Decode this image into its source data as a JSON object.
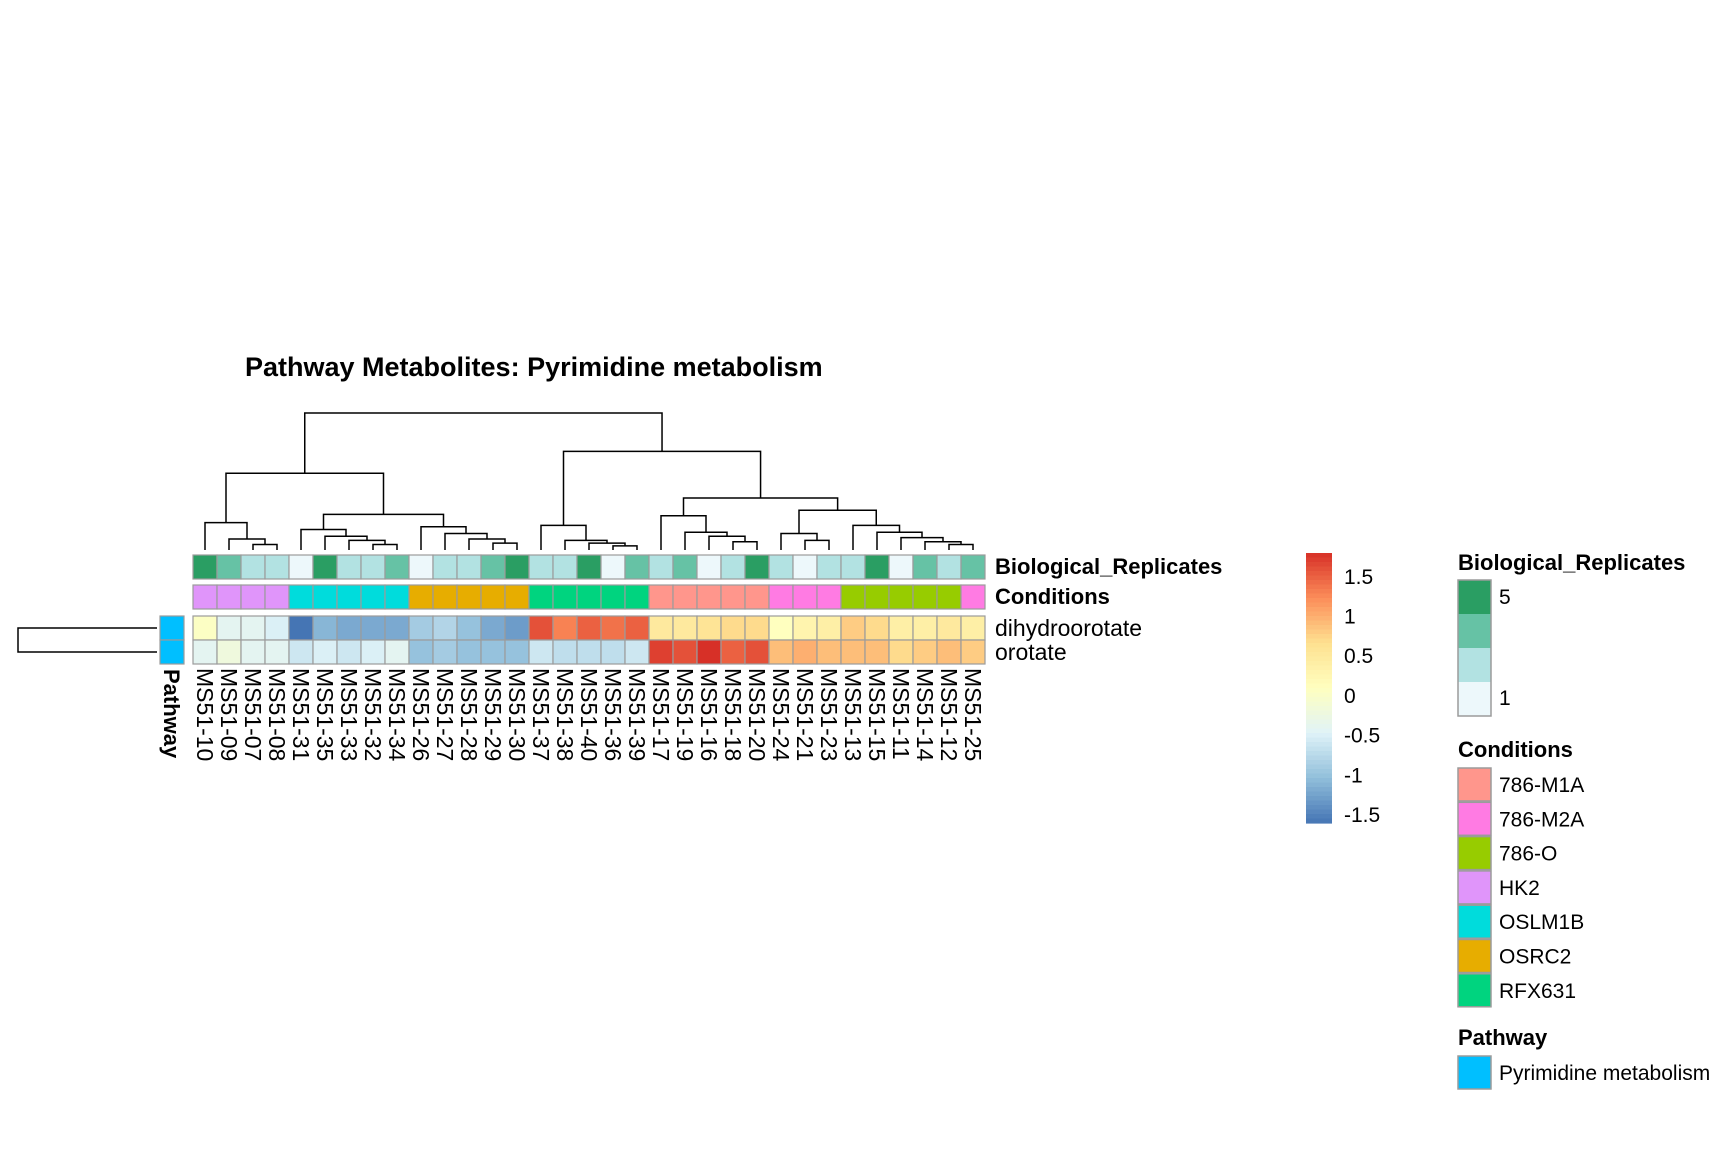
{
  "chart_data": {
    "type": "heatmap",
    "title": "Pathway  Metabolites:  Pyrimidine metabolism",
    "columns": [
      "MS51-10",
      "MS51-09",
      "MS51-07",
      "MS51-08",
      "MS51-31",
      "MS51-35",
      "MS51-33",
      "MS51-32",
      "MS51-34",
      "MS51-26",
      "MS51-27",
      "MS51-28",
      "MS51-29",
      "MS51-30",
      "MS51-37",
      "MS51-38",
      "MS51-40",
      "MS51-36",
      "MS51-39",
      "MS51-17",
      "MS51-19",
      "MS51-16",
      "MS51-18",
      "MS51-20",
      "MS51-24",
      "MS51-21",
      "MS51-23",
      "MS51-13",
      "MS51-15",
      "MS51-11",
      "MS51-14",
      "MS51-12",
      "MS51-25"
    ],
    "rows": [
      "dihydroorotate",
      "orotate"
    ],
    "values": [
      [
        0.05,
        -0.4,
        -0.4,
        -0.5,
        -1.6,
        -1.1,
        -1.2,
        -1.2,
        -1.2,
        -0.9,
        -0.8,
        -1.0,
        -1.2,
        -1.3,
        1.6,
        1.3,
        1.5,
        1.4,
        1.5,
        0.5,
        0.5,
        0.6,
        0.7,
        0.7,
        0.1,
        0.3,
        0.4,
        0.8,
        0.7,
        0.4,
        0.4,
        0.5,
        0.4
      ],
      [
        -0.4,
        -0.2,
        -0.4,
        -0.4,
        -0.6,
        -0.5,
        -0.6,
        -0.5,
        -0.4,
        -1.0,
        -0.9,
        -1.0,
        -1.0,
        -1.0,
        -0.6,
        -0.7,
        -0.7,
        -0.7,
        -0.6,
        1.7,
        1.6,
        1.8,
        1.5,
        1.6,
        0.9,
        1.0,
        0.9,
        0.9,
        0.9,
        0.7,
        0.8,
        0.9,
        0.8
      ]
    ],
    "annotations": {
      "Biological_Replicates": {
        "label": "Biological_Replicates",
        "values": [
          5,
          4,
          2,
          3,
          1,
          5,
          3,
          2,
          4,
          1,
          2,
          3,
          4,
          5,
          2,
          3,
          5,
          1,
          4,
          2,
          4,
          1,
          3,
          5,
          3,
          1,
          2,
          3,
          5,
          1,
          4,
          2,
          4
        ]
      },
      "Conditions": {
        "label": "Conditions",
        "values": [
          "HK2",
          "HK2",
          "HK2",
          "HK2",
          "OSLM1B",
          "OSLM1B",
          "OSLM1B",
          "OSLM1B",
          "OSLM1B",
          "OSRC2",
          "OSRC2",
          "OSRC2",
          "OSRC2",
          "OSRC2",
          "RFX631",
          "RFX631",
          "RFX631",
          "RFX631",
          "RFX631",
          "786-M1A",
          "786-M1A",
          "786-M1A",
          "786-M1A",
          "786-M1A",
          "786-M2A",
          "786-M2A",
          "786-M2A",
          "786-O",
          "786-O",
          "786-O",
          "786-O",
          "786-O",
          "786-M2A"
        ]
      },
      "Pathway": {
        "label": "Pathway",
        "values": [
          "Pyrimidine metabolism",
          "Pyrimidine metabolism"
        ]
      }
    },
    "scale": {
      "min": -1.6,
      "max": 1.8,
      "ticks": [
        -1.5,
        -1,
        -0.5,
        0,
        0.5,
        1,
        1.5
      ],
      "tick_labels": [
        "-1.5",
        "-1",
        "-0.5",
        "0",
        "0.5",
        "1",
        "1.5"
      ],
      "colors": [
        "#4575b4",
        "#91bfdb",
        "#e0f3f8",
        "#ffffbf",
        "#fee090",
        "#fc8d59",
        "#d73027"
      ]
    },
    "legends": {
      "bio": {
        "title": "Biological_Replicates",
        "labels": [
          "5",
          "1"
        ],
        "colors": [
          "#2a9e63",
          "#66c2a5",
          "#b2e2e2",
          "#edf8fb"
        ]
      },
      "conditions": {
        "title": "Conditions",
        "items": [
          {
            "label": "786-M1A",
            "color": "#ff968c"
          },
          {
            "label": "786-M2A",
            "color": "#ff7be3"
          },
          {
            "label": "786-O",
            "color": "#97cc00"
          },
          {
            "label": "HK2",
            "color": "#e095fa"
          },
          {
            "label": "OSLM1B",
            "color": "#00dcdc"
          },
          {
            "label": "OSRC2",
            "color": "#e7ad00"
          },
          {
            "label": "RFX631",
            "color": "#00d47f"
          }
        ]
      },
      "pathway": {
        "title": "Pathway",
        "items": [
          {
            "label": "Pyrimidine metabolism",
            "color": "#00bfff"
          }
        ]
      }
    },
    "col_dendrogram": [
      [
        "MS51-07",
        "MS51-08"
      ],
      [
        "MS51-09",
        "m0"
      ],
      [
        "MS51-10",
        "m1"
      ],
      [
        "MS51-32",
        "MS51-34"
      ],
      [
        "MS51-33",
        "m3"
      ],
      [
        "MS51-35",
        "m4"
      ],
      [
        "MS51-31",
        "m5"
      ],
      [
        "MS51-29",
        "MS51-30"
      ],
      [
        "MS51-28",
        "m7"
      ],
      [
        "MS51-27",
        "m8"
      ],
      [
        "MS51-26",
        "m9"
      ],
      [
        "m6",
        "m10"
      ],
      [
        "m2",
        "m11"
      ],
      [
        "MS51-36",
        "MS51-39"
      ],
      [
        "MS51-40",
        "m13"
      ],
      [
        "MS51-38",
        "m14"
      ],
      [
        "MS51-37",
        "m15"
      ],
      [
        "MS51-18",
        "MS51-20"
      ],
      [
        "MS51-16",
        "m17"
      ],
      [
        "MS51-19",
        "m18"
      ],
      [
        "MS51-17",
        "m19"
      ],
      [
        "MS51-21",
        "MS51-23"
      ],
      [
        "MS51-24",
        "m21"
      ],
      [
        "MS51-12",
        "MS51-25"
      ],
      [
        "MS51-14",
        "m23"
      ],
      [
        "MS51-11",
        "m24"
      ],
      [
        "MS51-15",
        "m25"
      ],
      [
        "MS51-13",
        "m26"
      ],
      [
        "m22",
        "m27"
      ],
      [
        "m20",
        "m28"
      ],
      [
        "m16",
        "m29"
      ],
      [
        "m12",
        "m30"
      ]
    ],
    "col_dendrogram_heights": [
      0.04,
      0.08,
      0.2,
      0.04,
      0.07,
      0.1,
      0.15,
      0.05,
      0.08,
      0.12,
      0.17,
      0.26,
      0.56,
      0.03,
      0.05,
      0.07,
      0.18,
      0.06,
      0.1,
      0.13,
      0.25,
      0.07,
      0.12,
      0.04,
      0.06,
      0.09,
      0.13,
      0.18,
      0.29,
      0.38,
      0.72,
      1.0
    ]
  }
}
